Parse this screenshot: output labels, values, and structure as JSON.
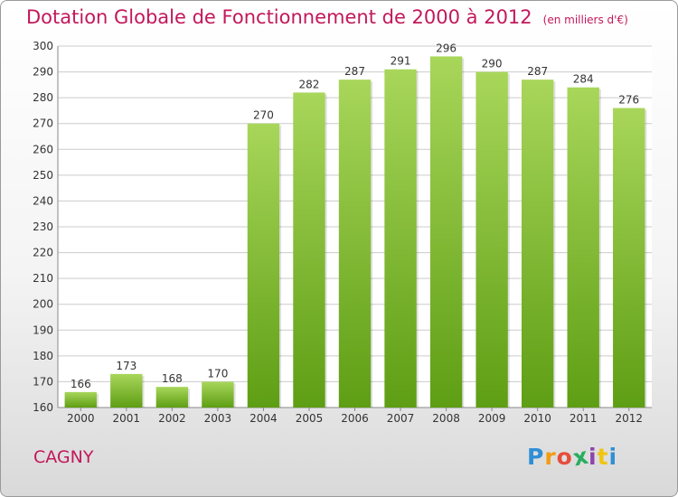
{
  "header": {
    "title": "Dotation Globale de Fonctionnement de 2000 à 2012",
    "subtitle": "(en milliers d'€)"
  },
  "commune": "CAGNY",
  "brand": {
    "name": "Proxiti",
    "letters": [
      "P",
      "r",
      "o",
      "x",
      "i",
      "t",
      "i"
    ],
    "colors": [
      "#2f8fd6",
      "#f39c12",
      "#e74c3c",
      "#27ae60",
      "#8e44ad",
      "#f1c40f",
      "#2f8fd6"
    ]
  },
  "colors": {
    "bar_top": "#a8d65a",
    "bar_bottom": "#5e9e14",
    "accent": "#c2185b",
    "grid": "#cccccc"
  },
  "chart_data": {
    "type": "bar",
    "title": "Dotation Globale de Fonctionnement de 2000 à 2012",
    "subtitle": "(en milliers d'€)",
    "categories": [
      "2000",
      "2001",
      "2002",
      "2003",
      "2004",
      "2005",
      "2006",
      "2007",
      "2008",
      "2009",
      "2010",
      "2011",
      "2012"
    ],
    "values": [
      166,
      173,
      168,
      170,
      270,
      282,
      287,
      291,
      296,
      290,
      287,
      284,
      276
    ],
    "yticks": [
      160,
      170,
      180,
      190,
      200,
      210,
      220,
      230,
      240,
      250,
      260,
      270,
      280,
      290,
      300
    ],
    "ylim": [
      160,
      300
    ],
    "grid": true,
    "legend": "none",
    "xlabel": "",
    "ylabel": ""
  }
}
